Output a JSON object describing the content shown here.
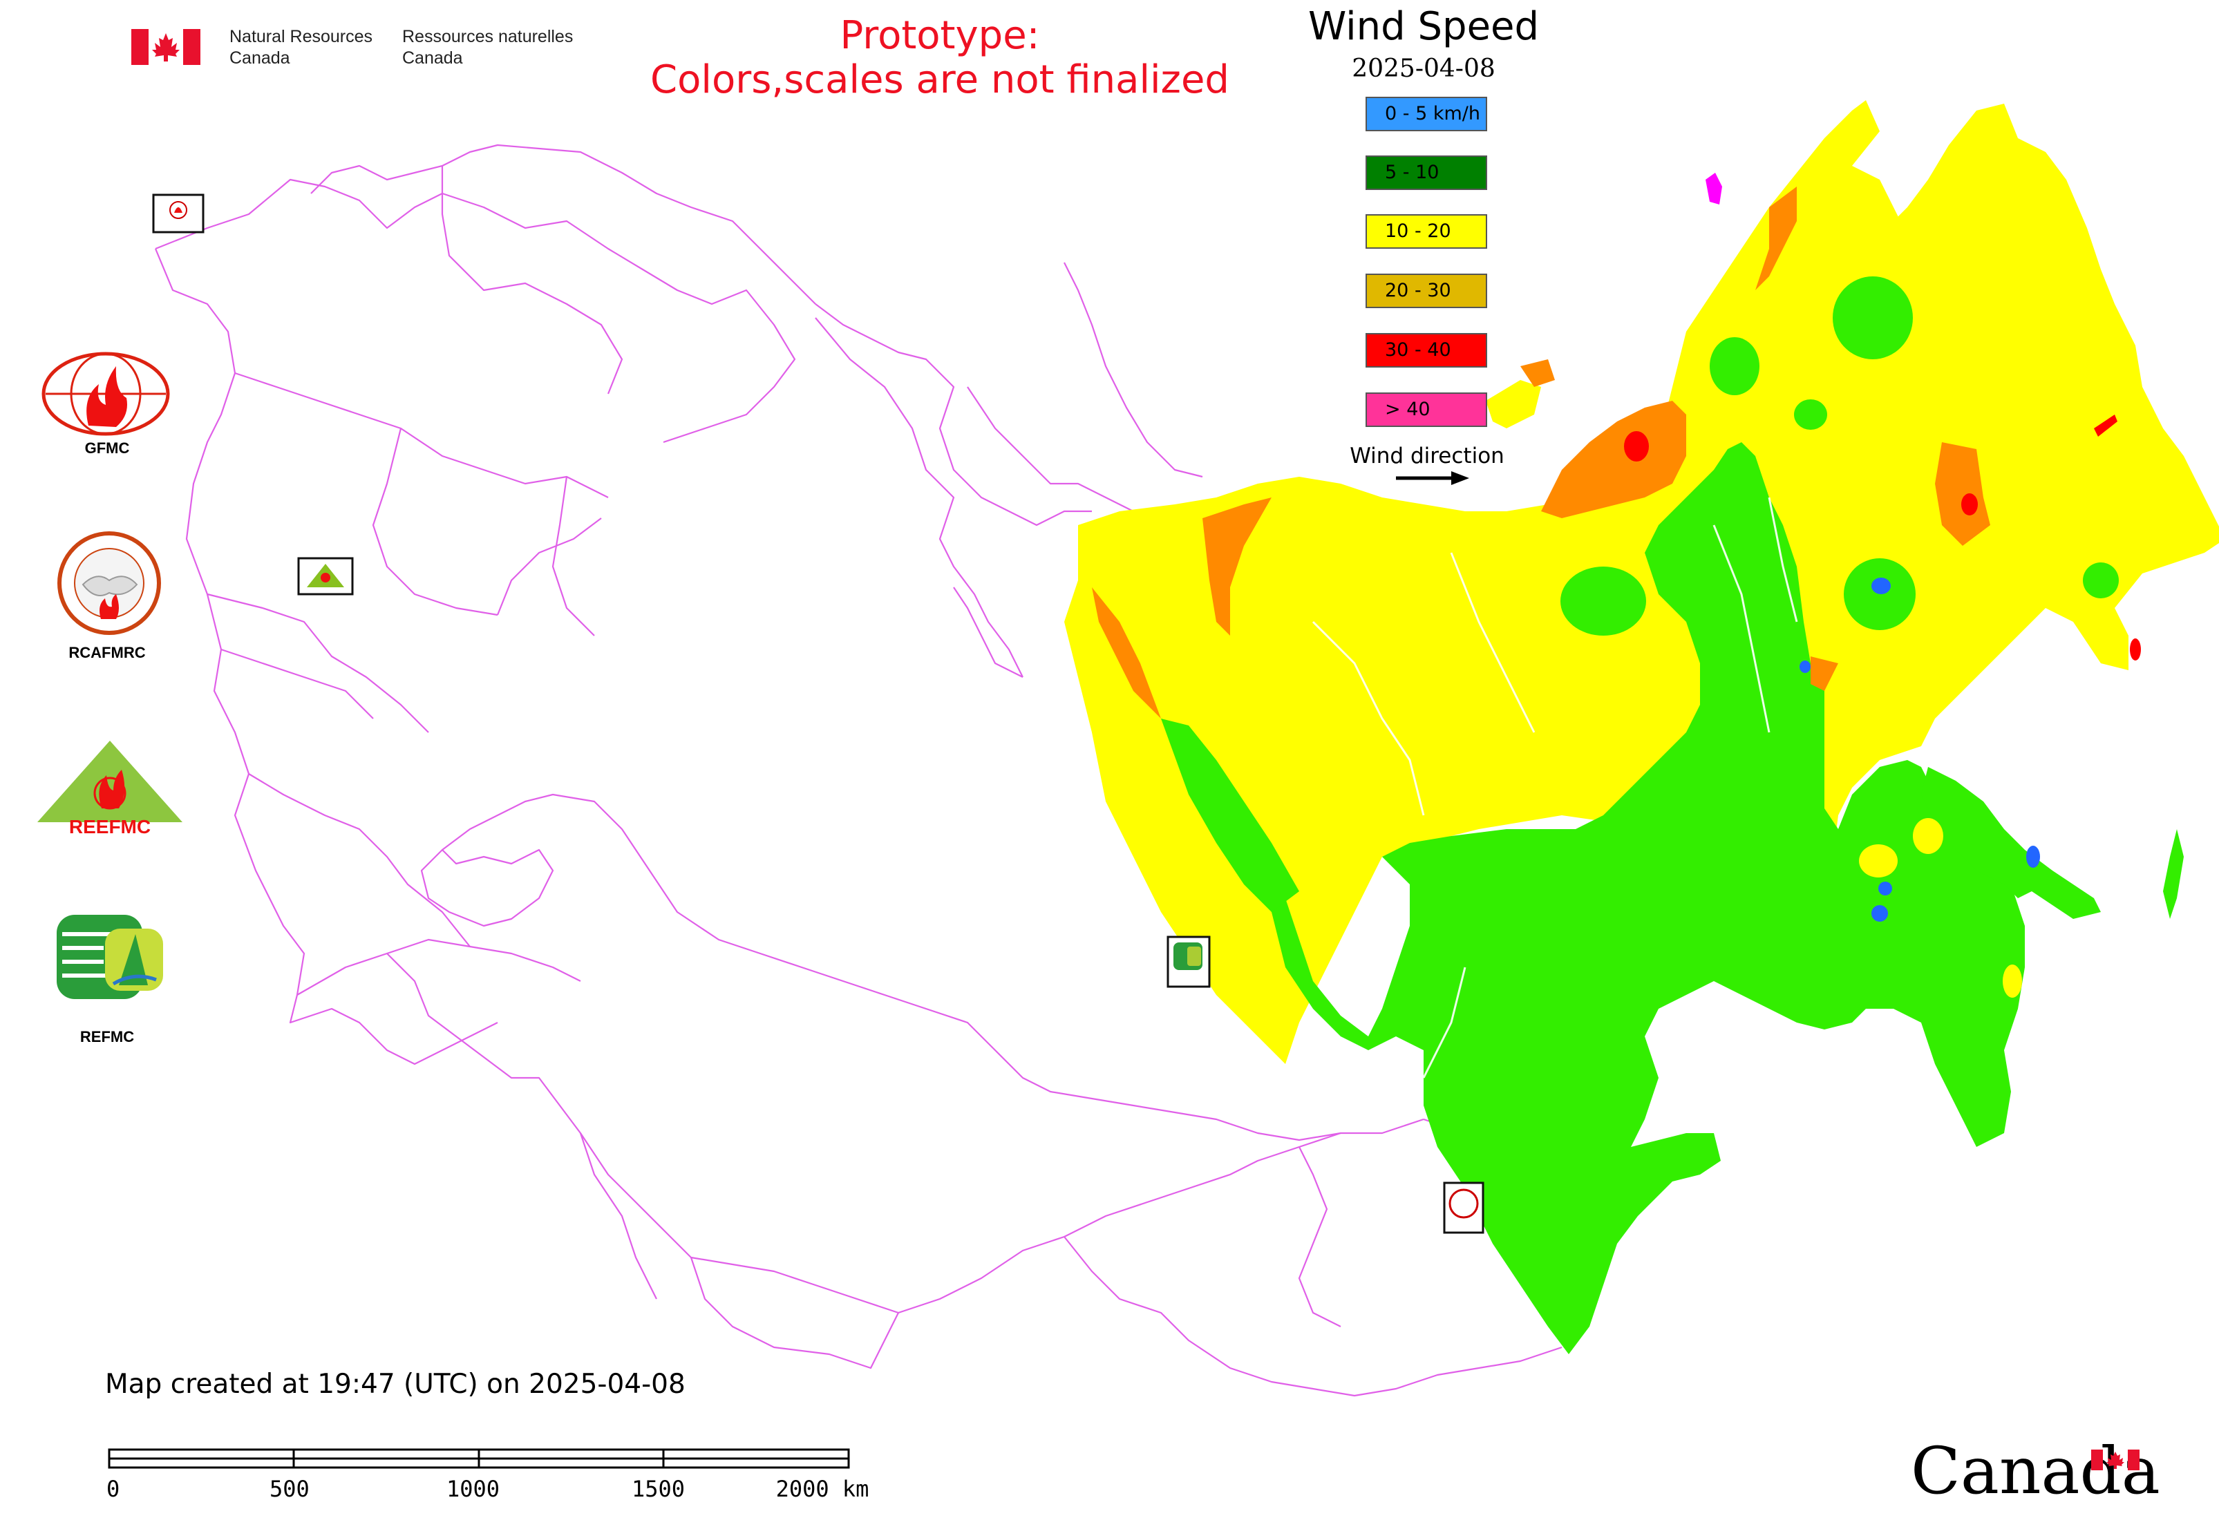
{
  "header": {
    "org_en_line1": "Natural Resources",
    "org_en_line2": "Canada",
    "org_fr_line1": "Ressources naturelles",
    "org_fr_line2": "Canada",
    "prototype_line1": "Prototype:",
    "prototype_line2": "Colors,scales are not finalized",
    "title": "Wind Speed",
    "date": "2025-04-08"
  },
  "legend": {
    "items": [
      {
        "label": "0 - 5 km/h",
        "color": "#3399ff"
      },
      {
        "label": "5 - 10",
        "color": "#008000"
      },
      {
        "label": "10 - 20",
        "color": "#ffff00"
      },
      {
        "label": "20 - 30",
        "color": "#e0b800"
      },
      {
        "label": "30 - 40",
        "color": "#ff0000"
      },
      {
        "label": "> 40",
        "color": "#ff3399"
      }
    ],
    "wind_direction_label": "Wind direction"
  },
  "map_fill_colors": {
    "green": "#33ee00",
    "yellow": "#ffff00",
    "orange": "#ff8a00",
    "red": "#ff0000",
    "blue": "#2266ff",
    "magenta": "#ff00ff",
    "border": "#e060e8"
  },
  "side_logos": [
    {
      "name": "GFMC",
      "label": "GFMC"
    },
    {
      "name": "RCAFMRC",
      "label": "RCAFMRC"
    },
    {
      "name": "REEFMC",
      "label": "REEFMC"
    },
    {
      "name": "REFMC",
      "label": "REFMC"
    }
  ],
  "map_markers": [
    {
      "label": "GFMC"
    },
    {
      "label": "REEFMC"
    },
    {
      "label": "REFMC"
    },
    {
      "label": "RCAFMRC"
    }
  ],
  "footer": {
    "created_text": "Map created at 19:47 (UTC) on 2025-04-08",
    "scale_ticks": [
      "0",
      "500",
      "1000",
      "1500",
      "2000 km"
    ],
    "canada_wordmark": "Canada"
  }
}
